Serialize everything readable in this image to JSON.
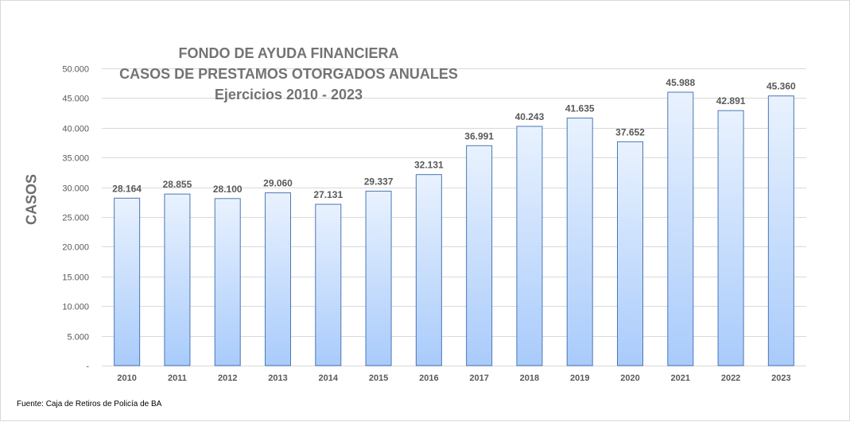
{
  "chart_data": {
    "type": "bar",
    "title": [
      "FONDO DE AYUDA FINANCIERA",
      "CASOS DE PRESTAMOS OTORGADOS ANUALES",
      "Ejercicios 2010 - 2023"
    ],
    "ylabel": "CASOS",
    "xlabel": "",
    "categories": [
      "2010",
      "2011",
      "2012",
      "2013",
      "2014",
      "2015",
      "2016",
      "2017",
      "2018",
      "2019",
      "2020",
      "2021",
      "2022",
      "2023"
    ],
    "values": [
      28164,
      28855,
      28100,
      29060,
      27131,
      29337,
      32131,
      36991,
      40243,
      41635,
      37652,
      45988,
      42891,
      45360
    ],
    "data_labels": [
      "28.164",
      "28.855",
      "28.100",
      "29.060",
      "27.131",
      "29.337",
      "32.131",
      "36.991",
      "40.243",
      "41.635",
      "37.652",
      "45.988",
      "42.891",
      "45.360"
    ],
    "ylim": [
      0,
      50000
    ],
    "yticks": [
      0,
      5000,
      10000,
      15000,
      20000,
      25000,
      30000,
      35000,
      40000,
      45000,
      50000
    ],
    "ytick_labels": [
      "-",
      "5.000",
      "10.000",
      "15.000",
      "20.000",
      "25.000",
      "30.000",
      "35.000",
      "40.000",
      "45.000",
      "50.000"
    ],
    "grid": true,
    "colors": {
      "bar_top": "#e9f2fe",
      "bar_bottom": "#a9cbfb",
      "bar_border": "#4a76b7",
      "grid": "#d9d9d9",
      "text": "#595959"
    }
  },
  "source": "Fuente: Caja de Retiros de Policía de BA"
}
